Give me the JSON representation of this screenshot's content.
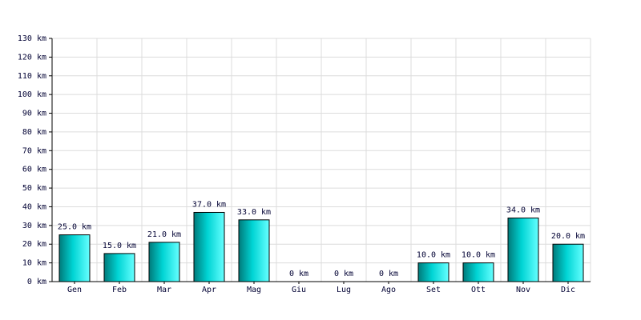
{
  "chart_data": {
    "type": "bar",
    "categories": [
      "Gen",
      "Feb",
      "Mar",
      "Apr",
      "Mag",
      "Giu",
      "Lug",
      "Ago",
      "Set",
      "Ott",
      "Nov",
      "Dic"
    ],
    "values": [
      25,
      15,
      21,
      37,
      33,
      0,
      0,
      0,
      10,
      10,
      34,
      20
    ],
    "value_labels": [
      "25.0 km",
      "15.0 km",
      "21.0 km",
      "37.0 km",
      "33.0 km",
      "0 km",
      "0 km",
      "0 km",
      "10.0 km",
      "10.0 km",
      "34.0 km",
      "20.0 km"
    ],
    "color": "#00d4d4",
    "ylim": [
      0,
      130
    ],
    "yticks": [
      {
        "value": 0,
        "label": "0 km"
      },
      {
        "value": 10,
        "label": "10 km"
      },
      {
        "value": 20,
        "label": "20 km"
      },
      {
        "value": 30,
        "label": "30 km"
      },
      {
        "value": 40,
        "label": "40 km"
      },
      {
        "value": 50,
        "label": "50 km"
      },
      {
        "value": 60,
        "label": "60 km"
      },
      {
        "value": 70,
        "label": "70 km"
      },
      {
        "value": 80,
        "label": "80 km"
      },
      {
        "value": 90,
        "label": "90 km"
      },
      {
        "value": 100,
        "label": "100 km"
      },
      {
        "value": 110,
        "label": "110 km"
      },
      {
        "value": 120,
        "label": "120 km"
      },
      {
        "value": 130,
        "label": "130 km"
      }
    ],
    "grid": true
  }
}
